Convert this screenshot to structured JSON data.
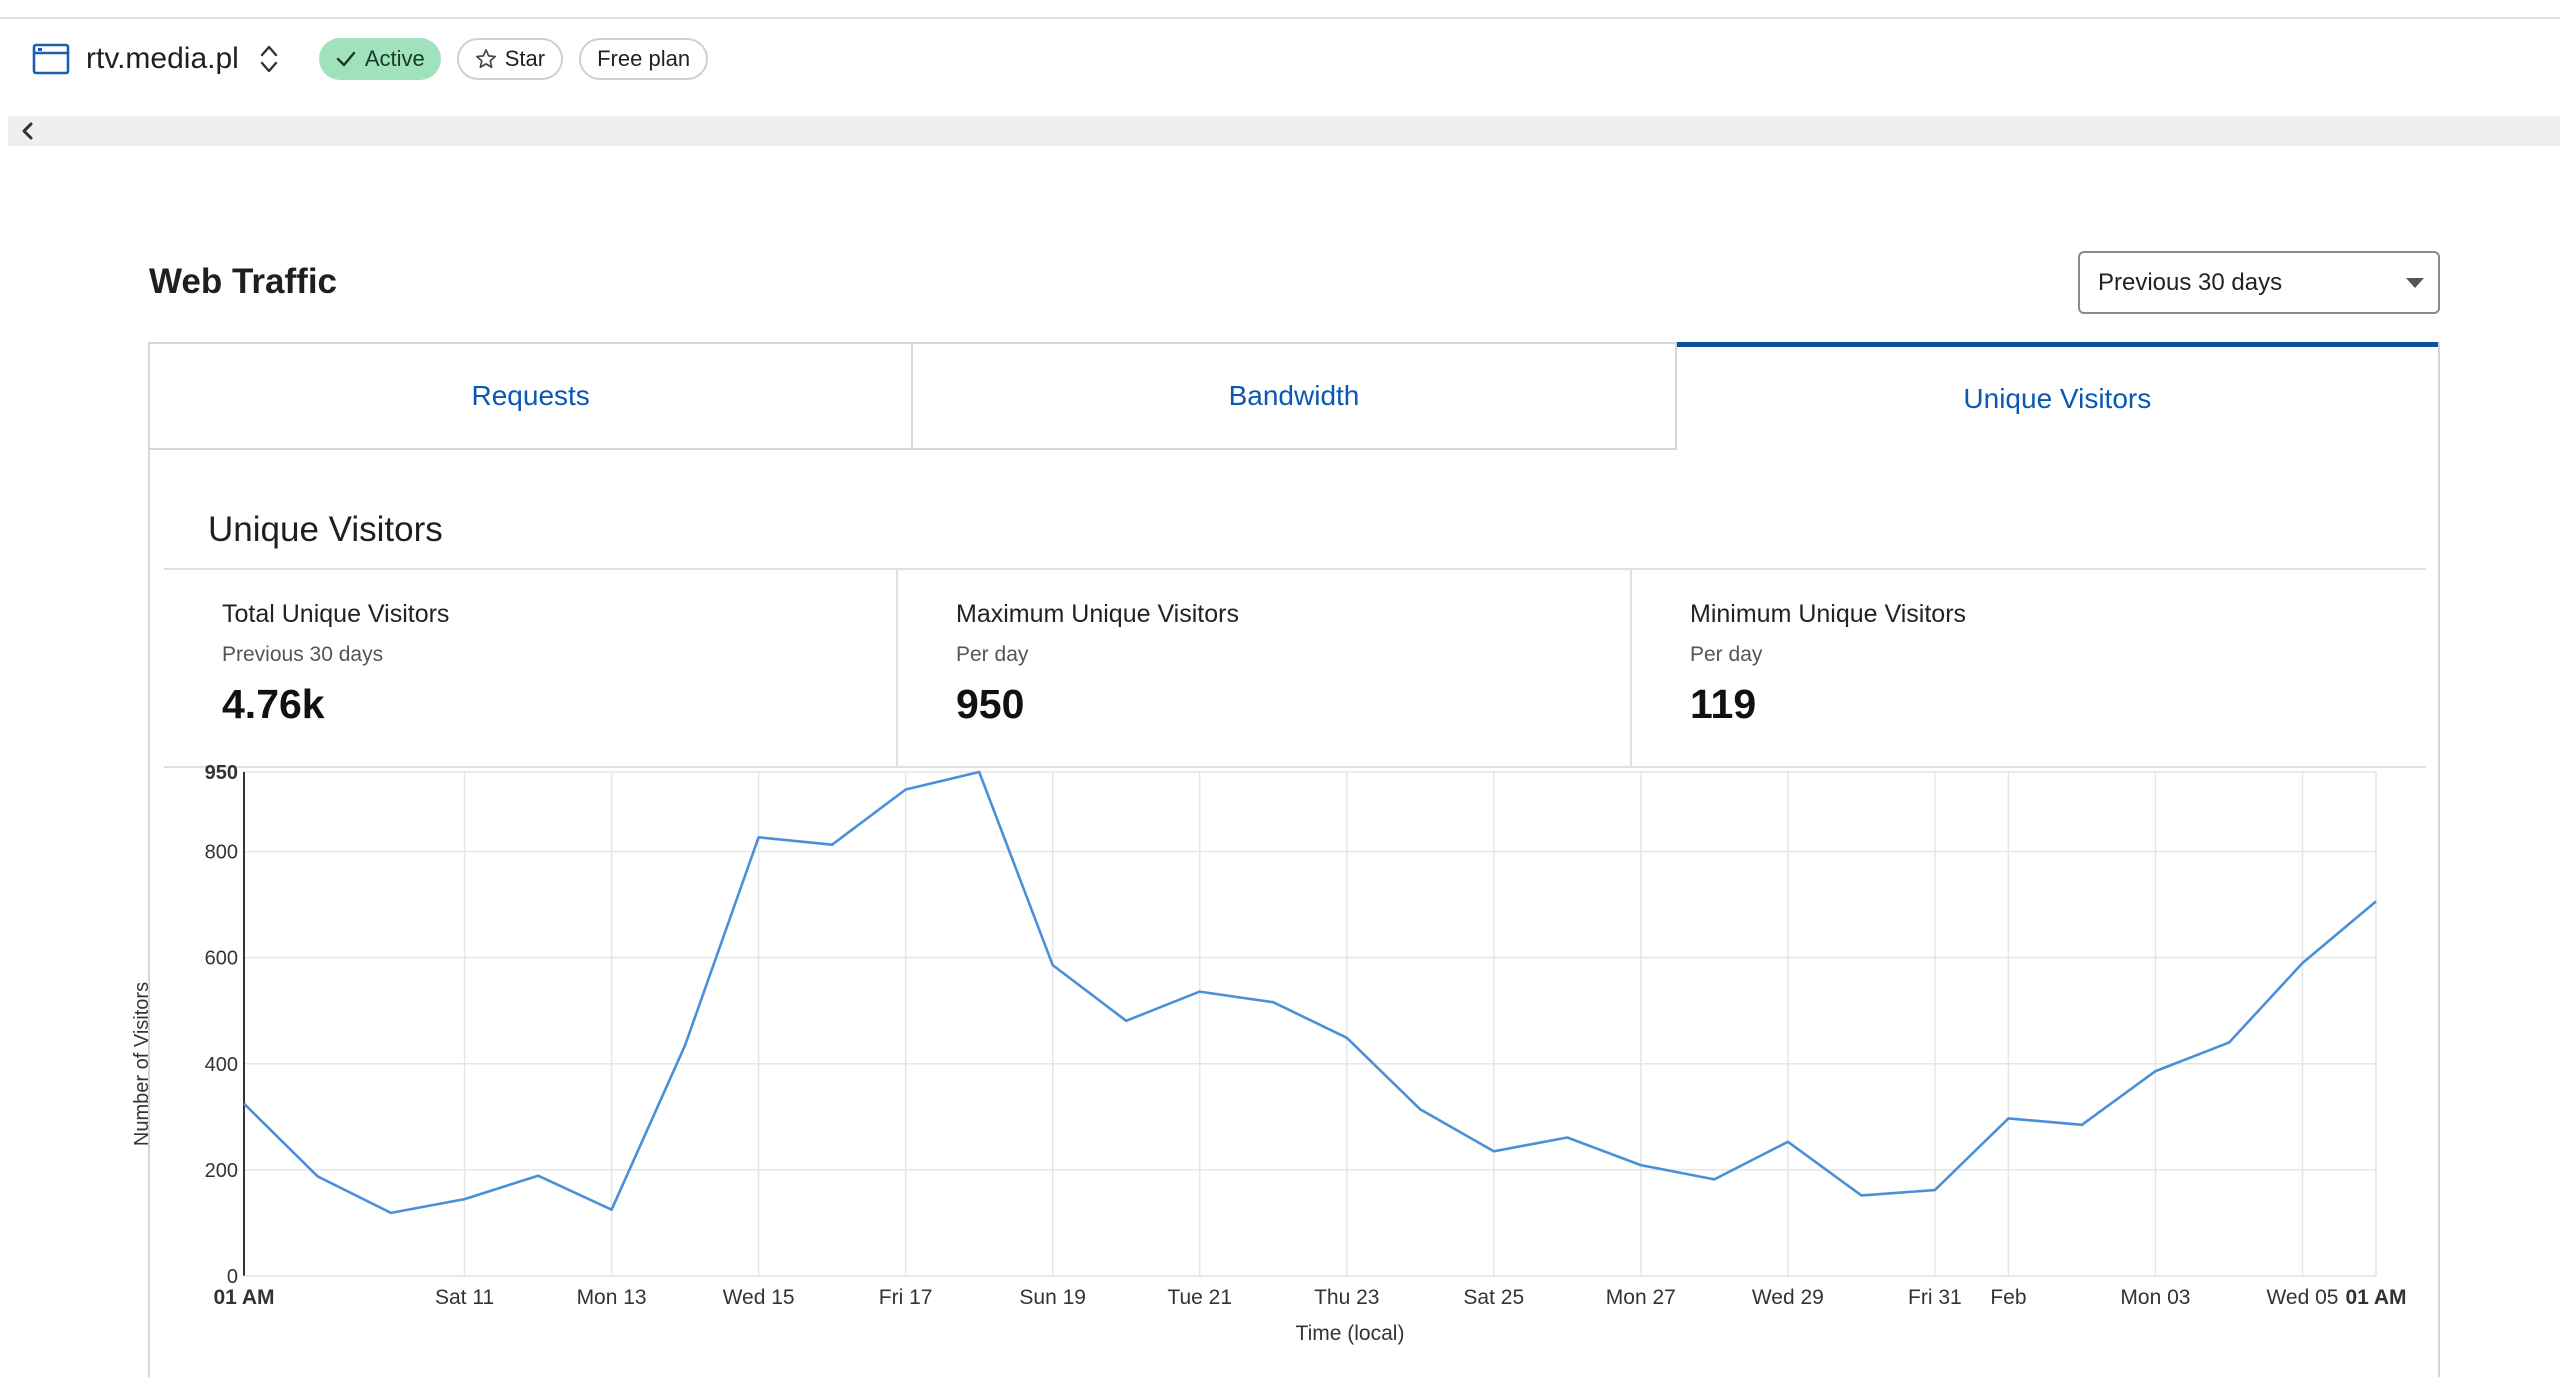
{
  "header": {
    "site_name": "rtv.media.pl",
    "status_badge": "Active",
    "star_label": "Star",
    "plan_badge": "Free plan"
  },
  "page": {
    "title": "Web Traffic",
    "range_select": "Previous 30 days"
  },
  "tabs": [
    {
      "label": "Requests"
    },
    {
      "label": "Bandwidth"
    },
    {
      "label": "Unique Visitors",
      "selected": true
    }
  ],
  "panel": {
    "title": "Unique Visitors",
    "stats": [
      {
        "label": "Total Unique Visitors",
        "sub": "Previous 30 days",
        "value": "4.76k"
      },
      {
        "label": "Maximum Unique Visitors",
        "sub": "Per day",
        "value": "950"
      },
      {
        "label": "Minimum Unique Visitors",
        "sub": "Per day",
        "value": "119"
      }
    ]
  },
  "colors": {
    "accent": "#0a58b4",
    "line": "#4a90d9",
    "active_badge": "#9fe2bd"
  },
  "icons": [
    "browser-window-icon",
    "chevron-updown-icon",
    "check-icon",
    "star-icon",
    "chevron-left-icon",
    "dropdown-caret-icon"
  ],
  "chart_data": {
    "type": "line",
    "xlabel": "Time (local)",
    "ylabel": "Number of Visitors",
    "ylim": [
      0,
      950
    ],
    "yticks": [
      0,
      200,
      400,
      600,
      800,
      950
    ],
    "grid": true,
    "x_ticks": [
      {
        "label": "01 AM",
        "bold": true,
        "index": 0
      },
      {
        "label": "Sat 11",
        "index": 3
      },
      {
        "label": "Mon 13",
        "index": 5
      },
      {
        "label": "Wed 15",
        "index": 7
      },
      {
        "label": "Fri 17",
        "index": 9
      },
      {
        "label": "Sun 19",
        "index": 11
      },
      {
        "label": "Tue 21",
        "index": 13
      },
      {
        "label": "Thu 23",
        "index": 15
      },
      {
        "label": "Sat 25",
        "index": 17
      },
      {
        "label": "Mon 27",
        "index": 19
      },
      {
        "label": "Wed 29",
        "index": 21
      },
      {
        "label": "Fri 31",
        "index": 23
      },
      {
        "label": "Feb",
        "index": 24
      },
      {
        "label": "Mon 03",
        "index": 26
      },
      {
        "label": "Wed 05",
        "index": 28
      },
      {
        "label": "01 AM",
        "bold": true,
        "index": 29
      }
    ],
    "series": [
      {
        "values": [
          325,
          188,
          119,
          145,
          189,
          125,
          435,
          827,
          813,
          917,
          950,
          586,
          481,
          536,
          516,
          449,
          314,
          235,
          261,
          209,
          182,
          253,
          152,
          162,
          297,
          285,
          386,
          440,
          590,
          706
        ]
      }
    ]
  }
}
